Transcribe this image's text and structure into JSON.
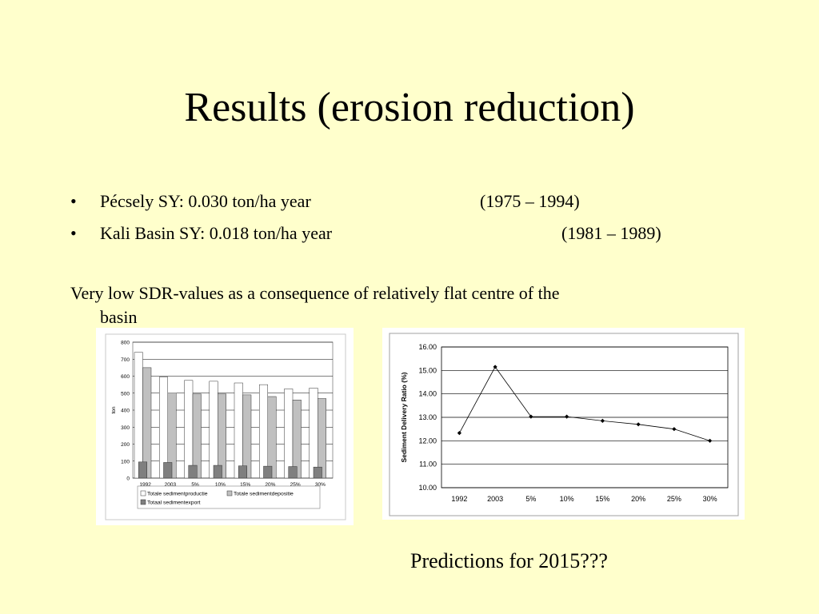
{
  "slide": {
    "title": "Results (erosion reduction)",
    "bullets": [
      {
        "bullet": "•",
        "text": "Pécsely SY: 0.030 ton/ha year",
        "years": "(1975 – 1994)"
      },
      {
        "bullet": "•",
        "text": "Kali Basin SY: 0.018 ton/ha year",
        "years": "(1981 – 1989)"
      }
    ],
    "note_line1": "Very low SDR-values as a consequence of relatively flat centre of the",
    "note_line2": "basin",
    "predictions": "Predictions for 2015???"
  },
  "chart_data": [
    {
      "type": "bar",
      "categories": [
        "1992",
        "2003",
        "5%",
        "10%",
        "15%",
        "20%",
        "25%",
        "30%"
      ],
      "series": [
        {
          "name": "Totale sedimentproductie",
          "color": "#ffffff",
          "values": [
            740,
            595,
            575,
            570,
            560,
            550,
            525,
            530
          ]
        },
        {
          "name": "Totale sedimentdepositie",
          "color": "#c0c0c0",
          "values": [
            650,
            500,
            495,
            495,
            490,
            480,
            460,
            468
          ]
        },
        {
          "name": "Totaal sedimentexport",
          "color": "#7f7f7f",
          "values": [
            95,
            92,
            75,
            75,
            72,
            70,
            68,
            65
          ]
        }
      ],
      "xlabel": "",
      "ylabel": "ton",
      "ylim": [
        0,
        800
      ],
      "yticks": [
        "0",
        "100",
        "200",
        "300",
        "400",
        "500",
        "600",
        "700",
        "800"
      ],
      "grid": true,
      "legend": "bottom"
    },
    {
      "type": "line",
      "categories": [
        "1992",
        "2003",
        "5%",
        "10%",
        "15%",
        "20%",
        "25%",
        "30%"
      ],
      "series": [
        {
          "values": [
            12.33,
            15.15,
            13.03,
            13.03,
            12.85,
            12.7,
            12.5,
            12.0
          ]
        }
      ],
      "xlabel": "",
      "ylabel": "Sediment Delivery Ratio (%)",
      "ylim": [
        10,
        16
      ],
      "yticks": [
        "10.00",
        "11.00",
        "12.00",
        "13.00",
        "14.00",
        "15.00",
        "16.00"
      ],
      "grid": true
    }
  ]
}
